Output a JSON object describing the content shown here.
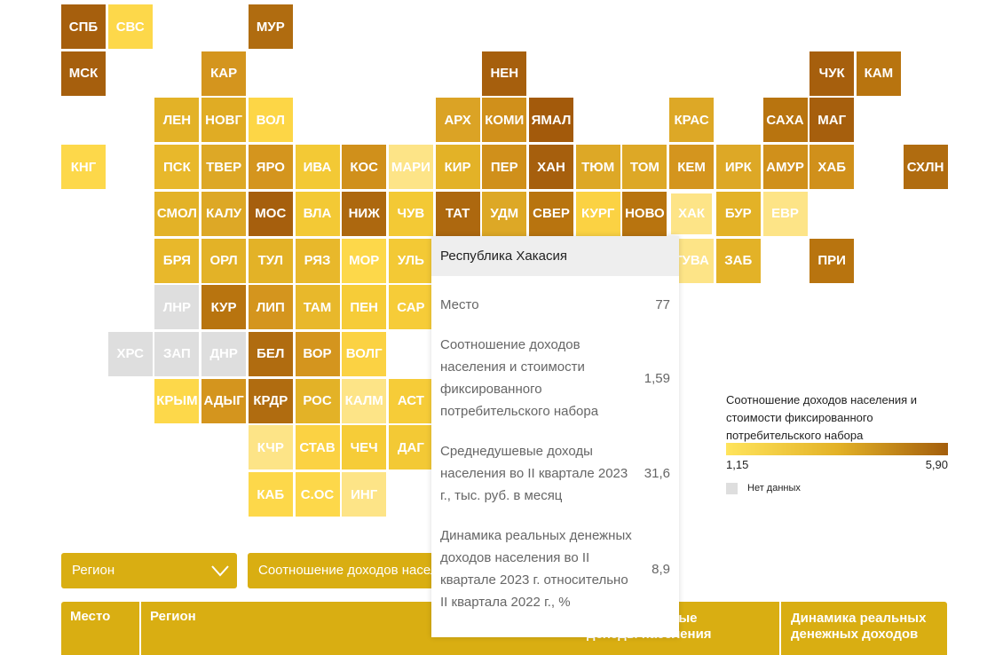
{
  "map": {
    "tiles": [
      {
        "label": "СПБ",
        "color": "#a65f0d"
      },
      {
        "label": "СВС",
        "color": "#fdd84a"
      },
      {
        "label": "МУР",
        "color": "#b06c10"
      },
      {
        "label": "МСК",
        "color": "#a65f0d"
      },
      {
        "label": "КАР",
        "color": "#d4951e"
      },
      {
        "label": "НЕН",
        "color": "#a65f0d"
      },
      {
        "label": "ЧУК",
        "color": "#a65f0d"
      },
      {
        "label": "КАМ",
        "color": "#b8740f"
      },
      {
        "label": "ЛЕН",
        "color": "#e3b227"
      },
      {
        "label": "НОВГ",
        "color": "#e0ac24"
      },
      {
        "label": "ВОЛ",
        "color": "#fdd646"
      },
      {
        "label": "АРХ",
        "color": "#dba325"
      },
      {
        "label": "КОМИ",
        "color": "#d0901b"
      },
      {
        "label": "ЯМАЛ",
        "color": "#a35a0b"
      },
      {
        "label": "КРАС",
        "color": "#dda826"
      },
      {
        "label": "САХА",
        "color": "#b8740f"
      },
      {
        "label": "МАГ",
        "color": "#a65f0d"
      },
      {
        "label": "КНГ",
        "color": "#fdd84a"
      },
      {
        "label": "ПСК",
        "color": "#e8b82b"
      },
      {
        "label": "ТВЕР",
        "color": "#dda826"
      },
      {
        "label": "ЯРО",
        "color": "#d4951e"
      },
      {
        "label": "ИВА",
        "color": "#f3c935"
      },
      {
        "label": "КОС",
        "color": "#d0901b"
      },
      {
        "label": "МАРИ",
        "color": "#fde487"
      },
      {
        "label": "КИР",
        "color": "#e3b227"
      },
      {
        "label": "ПЕР",
        "color": "#d0901b"
      },
      {
        "label": "ХАН",
        "color": "#a65f0d"
      },
      {
        "label": "ТЮМ",
        "color": "#dda826"
      },
      {
        "label": "ТОМ",
        "color": "#dda826"
      },
      {
        "label": "КЕМ",
        "color": "#d4951e"
      },
      {
        "label": "ИРК",
        "color": "#dda826"
      },
      {
        "label": "АМУР",
        "color": "#d0901b"
      },
      {
        "label": "ХАБ",
        "color": "#d0901b"
      },
      {
        "label": "СХЛН",
        "color": "#b06c10"
      },
      {
        "label": "СМОЛ",
        "color": "#e3b227"
      },
      {
        "label": "КАЛУ",
        "color": "#dda826"
      },
      {
        "label": "МОС",
        "color": "#a65f0d"
      },
      {
        "label": "ВЛА",
        "color": "#f3c935"
      },
      {
        "label": "НИЖ",
        "color": "#ad680f"
      },
      {
        "label": "ЧУВ",
        "color": "#f3c935"
      },
      {
        "label": "ТАТ",
        "color": "#ad680f"
      },
      {
        "label": "УДМ",
        "color": "#dda826"
      },
      {
        "label": "СВЕР",
        "color": "#b8740f"
      },
      {
        "label": "КУРГ",
        "color": "#fbd243"
      },
      {
        "label": "НОВО",
        "color": "#b8740f"
      },
      {
        "label": "ХАК",
        "color": "#fde487"
      },
      {
        "label": "БУР",
        "color": "#e3b227"
      },
      {
        "label": "ЕВР",
        "color": "#fde487"
      },
      {
        "label": "БРЯ",
        "color": "#e8b82b"
      },
      {
        "label": "ОРЛ",
        "color": "#e3b227"
      },
      {
        "label": "ТУЛ",
        "color": "#e3b227"
      },
      {
        "label": "РЯЗ",
        "color": "#e8b82b"
      },
      {
        "label": "МОР",
        "color": "#fdd84a"
      },
      {
        "label": "УЛЬ",
        "color": "#f3c935"
      },
      {
        "label": "ТУВА",
        "color": "#fde487"
      },
      {
        "label": "ЗАБ",
        "color": "#e3b227"
      },
      {
        "label": "ПРИ",
        "color": "#b8740f"
      },
      {
        "label": "ЛНР",
        "color": "#dedede"
      },
      {
        "label": "КУР",
        "color": "#b8740f"
      },
      {
        "label": "ЛИП",
        "color": "#d4951e"
      },
      {
        "label": "ТАМ",
        "color": "#e8b82b"
      },
      {
        "label": "ПЕН",
        "color": "#f6cc38"
      },
      {
        "label": "САР",
        "color": "#f6cc38"
      },
      {
        "label": "ХРС",
        "color": "#dedede"
      },
      {
        "label": "ЗАП",
        "color": "#dedede"
      },
      {
        "label": "ДНР",
        "color": "#dedede"
      },
      {
        "label": "БЕЛ",
        "color": "#b06c10"
      },
      {
        "label": "ВОР",
        "color": "#d4951e"
      },
      {
        "label": "ВОЛГ",
        "color": "#fbd243"
      },
      {
        "label": "КРЫМ",
        "color": "#fdd84a"
      },
      {
        "label": "АДЫГ",
        "color": "#d4951e"
      },
      {
        "label": "КРДР",
        "color": "#b06c10"
      },
      {
        "label": "РОС",
        "color": "#e3b227"
      },
      {
        "label": "КАЛМ",
        "color": "#fde487"
      },
      {
        "label": "АСТ",
        "color": "#f6cc38"
      },
      {
        "label": "КЧР",
        "color": "#fde487"
      },
      {
        "label": "СТАВ",
        "color": "#fbd243"
      },
      {
        "label": "ЧЕЧ",
        "color": "#f6cc38"
      },
      {
        "label": "ДАГ",
        "color": "#f3c935"
      },
      {
        "label": "КАБ",
        "color": "#fdd84a"
      },
      {
        "label": "С.ОС",
        "color": "#fdd84a"
      },
      {
        "label": "ИНГ",
        "color": "#fde487"
      }
    ]
  },
  "legend": {
    "title": "Соотношение доходов населения и стоимости фиксированного потребительского набора",
    "min_label": "1,15",
    "max_label": "5,90",
    "no_data": "Нет данных"
  },
  "tooltip": {
    "title": "Республика Хакасия",
    "rows": [
      {
        "label": "Место",
        "value": "77"
      },
      {
        "label": "Соотношение доходов населения и стоимости фиксированного потребительского набора",
        "value": "1,59"
      },
      {
        "label": "Среднедушевые доходы населения во II квартале 2023 г., тыс. руб. в месяц",
        "value": "31,6"
      },
      {
        "label": "Динамика реальных денежных доходов населения во II квартале 2023 г. относительно II квартала 2022 г., %",
        "value": "8,9"
      }
    ]
  },
  "controls": {
    "region": "Регион",
    "indicator": "Соотношение доходов населения и стоимости фиксированного потребительского набора"
  },
  "table": {
    "headers": [
      "Место",
      "Регион",
      "Среднедушевые доходы населения",
      "Динамика реальных денежных доходов"
    ]
  }
}
